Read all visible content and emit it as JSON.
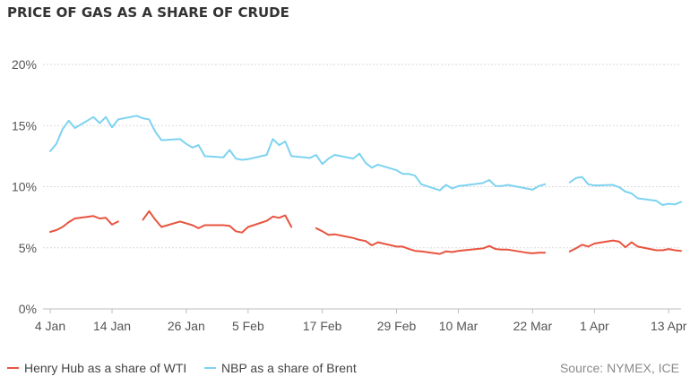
{
  "chart_data": {
    "type": "line",
    "title": "PRICE OF GAS AS A SHARE OF CRUDE",
    "xlabel": "",
    "ylabel": "",
    "ylim": [
      0,
      20
    ],
    "yticks": [
      0,
      5,
      10,
      15,
      20
    ],
    "ytick_labels": [
      "0%",
      "5%",
      "10%",
      "15%",
      "20%"
    ],
    "xlim": [
      "2016-01-04",
      "2016-04-15"
    ],
    "xtick_labels": [
      "4 Jan",
      "14 Jan",
      "26 Jan",
      "5 Feb",
      "17 Feb",
      "29 Feb",
      "10 Mar",
      "22 Mar",
      "1 Apr",
      "13 Apr"
    ],
    "xtick_dates": [
      "2016-01-04",
      "2016-01-14",
      "2016-01-26",
      "2016-02-05",
      "2016-02-17",
      "2016-02-29",
      "2016-03-10",
      "2016-03-22",
      "2016-04-01",
      "2016-04-13"
    ],
    "grid": true,
    "legend_position": "bottom-left",
    "source": "Source: NYMEX, ICE",
    "series": [
      {
        "name": "Henry Hub as a share of WTI",
        "color": "#e8533f",
        "segments": [
          [
            [
              "2016-01-04",
              6.3
            ],
            [
              "2016-01-05",
              6.45
            ],
            [
              "2016-01-06",
              6.7
            ],
            [
              "2016-01-07",
              7.1
            ],
            [
              "2016-01-08",
              7.4
            ],
            [
              "2016-01-11",
              7.6
            ],
            [
              "2016-01-12",
              7.4
            ],
            [
              "2016-01-13",
              7.45
            ],
            [
              "2016-01-14",
              6.9
            ],
            [
              "2016-01-15",
              7.15
            ]
          ],
          [
            [
              "2016-01-19",
              7.3
            ],
            [
              "2016-01-20",
              8.0
            ],
            [
              "2016-01-21",
              7.3
            ],
            [
              "2016-01-22",
              6.7
            ],
            [
              "2016-01-25",
              7.15
            ],
            [
              "2016-01-26",
              7.0
            ],
            [
              "2016-01-27",
              6.85
            ],
            [
              "2016-01-28",
              6.6
            ],
            [
              "2016-01-29",
              6.85
            ],
            [
              "2016-02-01",
              6.85
            ],
            [
              "2016-02-02",
              6.8
            ],
            [
              "2016-02-03",
              6.35
            ],
            [
              "2016-02-04",
              6.25
            ],
            [
              "2016-02-05",
              6.7
            ],
            [
              "2016-02-08",
              7.2
            ],
            [
              "2016-02-09",
              7.55
            ],
            [
              "2016-02-10",
              7.45
            ],
            [
              "2016-02-11",
              7.65
            ],
            [
              "2016-02-12",
              6.7
            ]
          ],
          [
            [
              "2016-02-16",
              6.6
            ],
            [
              "2016-02-17",
              6.35
            ],
            [
              "2016-02-18",
              6.05
            ],
            [
              "2016-02-19",
              6.1
            ],
            [
              "2016-02-22",
              5.8
            ],
            [
              "2016-02-23",
              5.65
            ],
            [
              "2016-02-24",
              5.55
            ],
            [
              "2016-02-25",
              5.2
            ],
            [
              "2016-02-26",
              5.45
            ],
            [
              "2016-02-29",
              5.1
            ],
            [
              "2016-03-01",
              5.1
            ],
            [
              "2016-03-02",
              4.9
            ],
            [
              "2016-03-03",
              4.75
            ],
            [
              "2016-03-04",
              4.7
            ],
            [
              "2016-03-07",
              4.5
            ],
            [
              "2016-03-08",
              4.7
            ],
            [
              "2016-03-09",
              4.65
            ],
            [
              "2016-03-10",
              4.75
            ],
            [
              "2016-03-11",
              4.8
            ],
            [
              "2016-03-14",
              4.95
            ],
            [
              "2016-03-15",
              5.15
            ],
            [
              "2016-03-16",
              4.9
            ],
            [
              "2016-03-17",
              4.85
            ],
            [
              "2016-03-18",
              4.85
            ],
            [
              "2016-03-21",
              4.6
            ],
            [
              "2016-03-22",
              4.55
            ],
            [
              "2016-03-23",
              4.6
            ],
            [
              "2016-03-24",
              4.6
            ]
          ],
          [
            [
              "2016-03-28",
              4.7
            ],
            [
              "2016-03-29",
              4.95
            ],
            [
              "2016-03-30",
              5.25
            ],
            [
              "2016-03-31",
              5.1
            ],
            [
              "2016-04-01",
              5.35
            ],
            [
              "2016-04-04",
              5.6
            ],
            [
              "2016-04-05",
              5.5
            ],
            [
              "2016-04-06",
              5.05
            ],
            [
              "2016-04-07",
              5.45
            ],
            [
              "2016-04-08",
              5.1
            ],
            [
              "2016-04-11",
              4.8
            ],
            [
              "2016-04-12",
              4.8
            ],
            [
              "2016-04-13",
              4.9
            ],
            [
              "2016-04-14",
              4.8
            ],
            [
              "2016-04-15",
              4.75
            ]
          ]
        ]
      },
      {
        "name": "NBP as a share of Brent",
        "color": "#7dd3f0",
        "segments": [
          [
            [
              "2016-01-04",
              12.9
            ],
            [
              "2016-01-05",
              13.5
            ],
            [
              "2016-01-06",
              14.7
            ],
            [
              "2016-01-07",
              15.4
            ],
            [
              "2016-01-08",
              14.8
            ],
            [
              "2016-01-11",
              15.7
            ],
            [
              "2016-01-12",
              15.2
            ],
            [
              "2016-01-13",
              15.7
            ],
            [
              "2016-01-14",
              14.85
            ],
            [
              "2016-01-15",
              15.5
            ],
            [
              "2016-01-18",
              15.8
            ],
            [
              "2016-01-19",
              15.6
            ],
            [
              "2016-01-20",
              15.5
            ],
            [
              "2016-01-21",
              14.5
            ],
            [
              "2016-01-22",
              13.8
            ],
            [
              "2016-01-25",
              13.9
            ],
            [
              "2016-01-26",
              13.5
            ],
            [
              "2016-01-27",
              13.2
            ],
            [
              "2016-01-28",
              13.4
            ],
            [
              "2016-01-29",
              12.5
            ],
            [
              "2016-02-01",
              12.4
            ],
            [
              "2016-02-02",
              13.0
            ],
            [
              "2016-02-03",
              12.3
            ],
            [
              "2016-02-04",
              12.2
            ],
            [
              "2016-02-05",
              12.25
            ],
            [
              "2016-02-08",
              12.6
            ],
            [
              "2016-02-09",
              13.9
            ],
            [
              "2016-02-10",
              13.4
            ],
            [
              "2016-02-11",
              13.7
            ],
            [
              "2016-02-12",
              12.5
            ],
            [
              "2016-02-15",
              12.35
            ],
            [
              "2016-02-16",
              12.6
            ],
            [
              "2016-02-17",
              11.85
            ],
            [
              "2016-02-18",
              12.3
            ],
            [
              "2016-02-19",
              12.6
            ],
            [
              "2016-02-22",
              12.3
            ],
            [
              "2016-02-23",
              12.7
            ],
            [
              "2016-02-24",
              11.95
            ],
            [
              "2016-02-25",
              11.55
            ],
            [
              "2016-02-26",
              11.8
            ],
            [
              "2016-02-29",
              11.35
            ],
            [
              "2016-03-01",
              11.05
            ],
            [
              "2016-03-02",
              11.05
            ],
            [
              "2016-03-03",
              10.9
            ],
            [
              "2016-03-04",
              10.2
            ],
            [
              "2016-03-07",
              9.7
            ],
            [
              "2016-03-08",
              10.15
            ],
            [
              "2016-03-09",
              9.85
            ],
            [
              "2016-03-10",
              10.05
            ],
            [
              "2016-03-11",
              10.1
            ],
            [
              "2016-03-14",
              10.3
            ],
            [
              "2016-03-15",
              10.55
            ],
            [
              "2016-03-16",
              10.05
            ],
            [
              "2016-03-17",
              10.05
            ],
            [
              "2016-03-18",
              10.15
            ],
            [
              "2016-03-21",
              9.85
            ],
            [
              "2016-03-22",
              9.75
            ],
            [
              "2016-03-23",
              10.05
            ],
            [
              "2016-03-24",
              10.2
            ]
          ],
          [
            [
              "2016-03-28",
              10.35
            ],
            [
              "2016-03-29",
              10.7
            ],
            [
              "2016-03-30",
              10.8
            ],
            [
              "2016-03-31",
              10.2
            ],
            [
              "2016-04-01",
              10.1
            ],
            [
              "2016-04-04",
              10.15
            ],
            [
              "2016-04-05",
              9.95
            ],
            [
              "2016-04-06",
              9.6
            ],
            [
              "2016-04-07",
              9.45
            ],
            [
              "2016-04-08",
              9.05
            ],
            [
              "2016-04-11",
              8.85
            ],
            [
              "2016-04-12",
              8.5
            ],
            [
              "2016-04-13",
              8.6
            ],
            [
              "2016-04-14",
              8.55
            ],
            [
              "2016-04-15",
              8.75
            ]
          ]
        ]
      }
    ]
  }
}
